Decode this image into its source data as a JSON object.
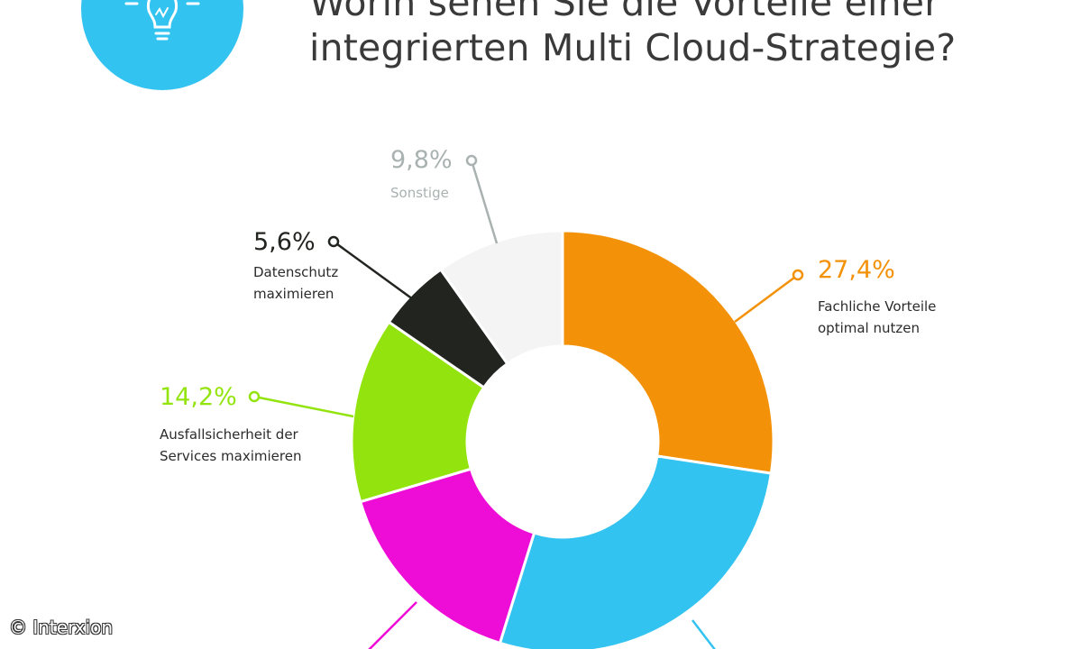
{
  "title_lines": [
    "Worin sehen Sie die Vorteile einer",
    "integrierten Multi Cloud-Strategie?"
  ],
  "copyright": "© Interxion",
  "colors": {
    "accent_circle": "#33c3f0",
    "icon": "#ffffff"
  },
  "icon_name": "lightbulb-icon",
  "chart_data": {
    "type": "pie",
    "donut": true,
    "slices": [
      {
        "label": "Fachliche Vorteile optimal nutzen",
        "label_lines": [
          "Fachliche Vorteile",
          "optimal nutzen"
        ],
        "pct_text": "27,4%",
        "value": 27.4,
        "color": "#f39208",
        "text_color": "#f39208"
      },
      {
        "label": "",
        "label_lines": [],
        "pct_text": "",
        "value": 27.4,
        "color": "#33c3f0",
        "text_color": "#33c3f0"
      },
      {
        "label": "",
        "label_lines": [],
        "pct_text": "",
        "value": 15.6,
        "color": "#ee0cd7",
        "text_color": "#ee0cd7"
      },
      {
        "label": "Ausfallsicherheit der Services maximieren",
        "label_lines": [
          "Ausfallsicherheit der",
          "Services maximieren"
        ],
        "pct_text": "14,2%",
        "value": 14.2,
        "color": "#93e40e",
        "text_color": "#93e40e"
      },
      {
        "label": "Datenschutz maximieren",
        "label_lines": [
          "Datenschutz",
          "maximieren"
        ],
        "pct_text": "5,6%",
        "value": 5.6,
        "color": "#222420",
        "text_color": "#222420"
      },
      {
        "label": "Sonstige",
        "label_lines": [
          "Sonstige"
        ],
        "pct_text": "9,8%",
        "value": 9.8,
        "color": "#f3f4f3",
        "text_color": "#a9b2b1"
      }
    ]
  }
}
